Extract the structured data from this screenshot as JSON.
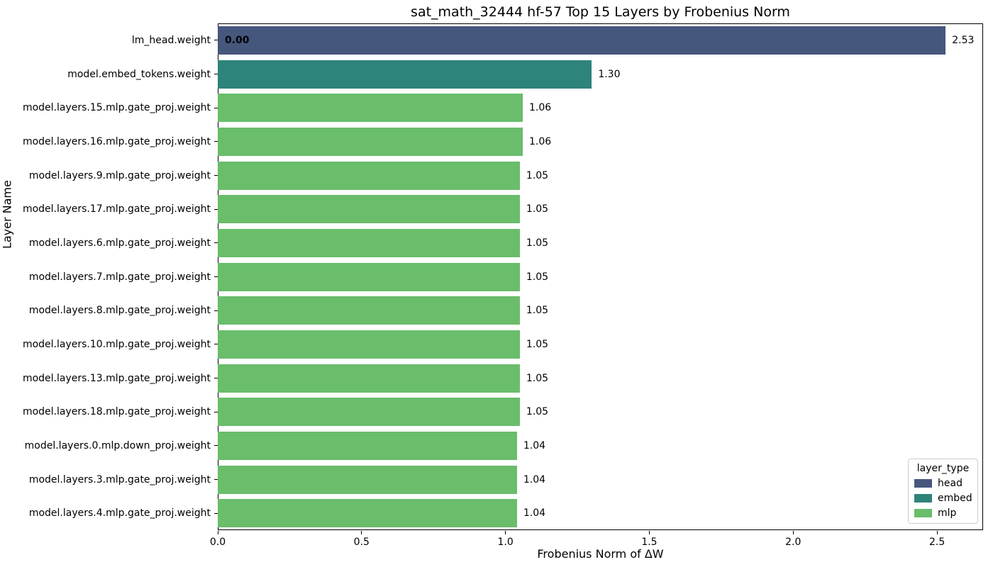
{
  "chart_data": {
    "type": "bar",
    "orientation": "horizontal",
    "title": "sat_math_32444 hf-57 Top 15 Layers by Frobenius Norm",
    "xlabel": "Frobenius Norm of ΔW",
    "ylabel": "Layer Name",
    "xlim": [
      0,
      2.66
    ],
    "xtick_labels": [
      "0.0",
      "0.5",
      "1.0",
      "1.5",
      "2.0",
      "2.5"
    ],
    "grid": false,
    "legend_position": "lower right",
    "categories": [
      "lm_head.weight",
      "model.embed_tokens.weight",
      "model.layers.15.mlp.gate_proj.weight",
      "model.layers.16.mlp.gate_proj.weight",
      "model.layers.9.mlp.gate_proj.weight",
      "model.layers.17.mlp.gate_proj.weight",
      "model.layers.6.mlp.gate_proj.weight",
      "model.layers.7.mlp.gate_proj.weight",
      "model.layers.8.mlp.gate_proj.weight",
      "model.layers.10.mlp.gate_proj.weight",
      "model.layers.13.mlp.gate_proj.weight",
      "model.layers.18.mlp.gate_proj.weight",
      "model.layers.0.mlp.down_proj.weight",
      "model.layers.3.mlp.gate_proj.weight",
      "model.layers.4.mlp.gate_proj.weight"
    ],
    "values": [
      2.53,
      1.3,
      1.06,
      1.06,
      1.05,
      1.05,
      1.05,
      1.05,
      1.05,
      1.05,
      1.05,
      1.05,
      1.04,
      1.04,
      1.04
    ],
    "value_labels": [
      "2.53",
      "1.30",
      "1.06",
      "1.06",
      "1.05",
      "1.05",
      "1.05",
      "1.05",
      "1.05",
      "1.05",
      "1.05",
      "1.05",
      "1.04",
      "1.04",
      "1.04"
    ],
    "bar_types": [
      "head",
      "embed",
      "mlp",
      "mlp",
      "mlp",
      "mlp",
      "mlp",
      "mlp",
      "mlp",
      "mlp",
      "mlp",
      "mlp",
      "mlp",
      "mlp",
      "mlp"
    ],
    "bar_annotation": {
      "bar_index": 0,
      "text": "0.00"
    },
    "legend": {
      "title": "layer_type",
      "entries": [
        {
          "label": "head",
          "color": "#46577e"
        },
        {
          "label": "embed",
          "color": "#2e837b"
        },
        {
          "label": "mlp",
          "color": "#69bd6b"
        }
      ]
    }
  },
  "colors": {
    "head": "#46577e",
    "embed": "#2e837b",
    "mlp": "#69bd6b",
    "spine": "#000000",
    "text": "#000000",
    "legend_border": "#cccccc",
    "background": "#ffffff"
  }
}
